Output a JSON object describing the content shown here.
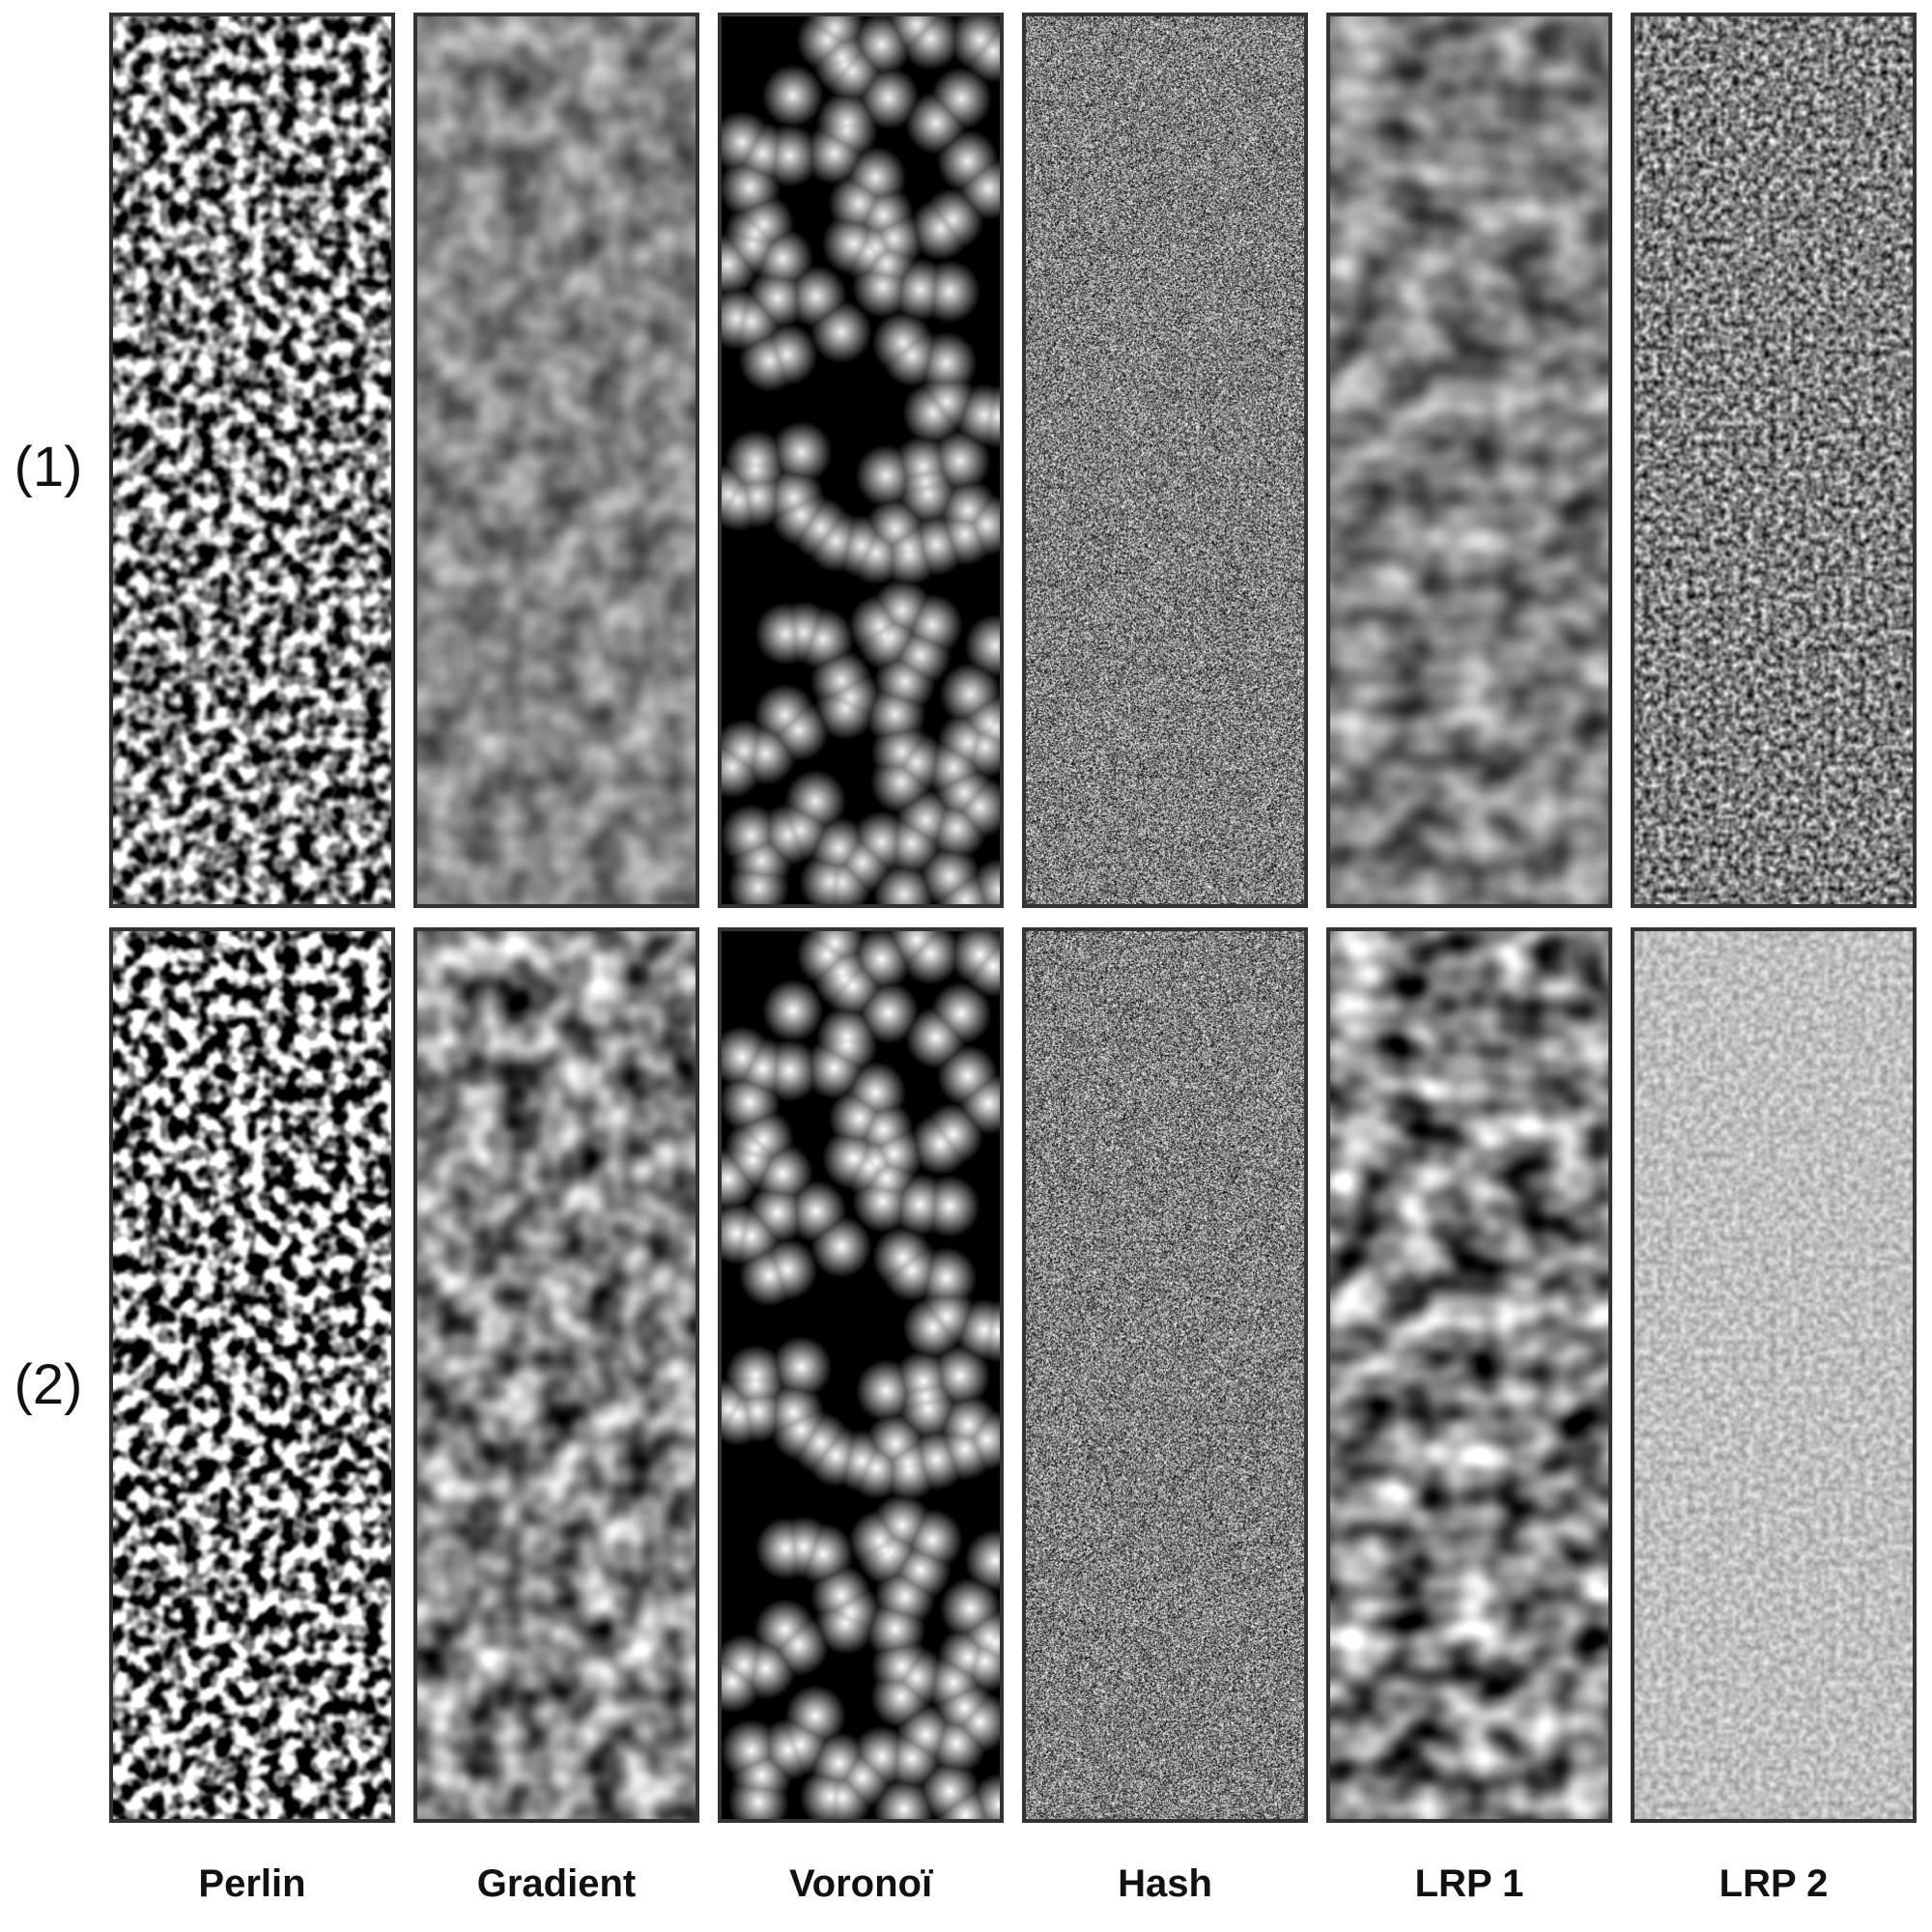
{
  "rows": [
    {
      "label": "(1)"
    },
    {
      "label": "(2)"
    }
  ],
  "columns": [
    {
      "label": "Perlin",
      "texture": "perlin"
    },
    {
      "label": "Gradient",
      "texture": "gradient"
    },
    {
      "label": "Voronoï",
      "texture": "voronoi"
    },
    {
      "label": "Hash",
      "texture": "hash"
    },
    {
      "label": "LRP 1",
      "texture": "lrp1"
    },
    {
      "label": "LRP 2",
      "texture": "lrp2"
    }
  ],
  "colors": {
    "border": "#333333",
    "background": "#ffffff",
    "text": "#111111"
  }
}
